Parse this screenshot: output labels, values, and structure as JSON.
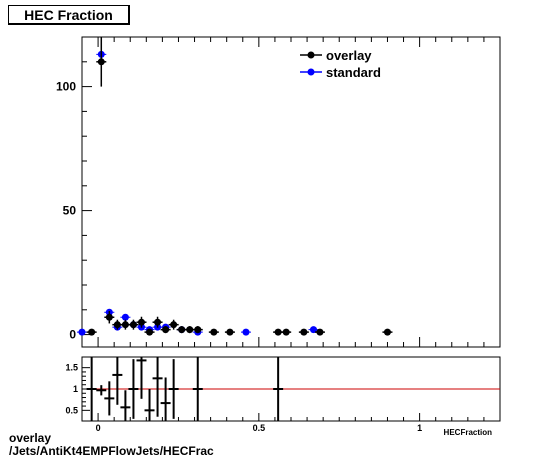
{
  "chart_data": [
    {
      "type": "scatter",
      "title": "HEC Fraction",
      "xlim": [
        -0.05,
        1.25
      ],
      "ylim": [
        -5,
        120
      ],
      "yticks": [
        0,
        50,
        100
      ],
      "grid": false,
      "legend_position": "top-right",
      "series": [
        {
          "name": "overlay",
          "color": "#000000",
          "points": [
            {
              "x": -0.02,
              "y": 1,
              "err": 0.8
            },
            {
              "x": 0.01,
              "y": 110,
              "err": 10
            },
            {
              "x": 0.035,
              "y": 7,
              "err": 2.5
            },
            {
              "x": 0.06,
              "y": 4,
              "err": 2
            },
            {
              "x": 0.085,
              "y": 4,
              "err": 2
            },
            {
              "x": 0.11,
              "y": 4,
              "err": 2
            },
            {
              "x": 0.135,
              "y": 5,
              "err": 2.2
            },
            {
              "x": 0.16,
              "y": 1,
              "err": 1
            },
            {
              "x": 0.185,
              "y": 5,
              "err": 2.2
            },
            {
              "x": 0.21,
              "y": 2,
              "err": 1.4
            },
            {
              "x": 0.235,
              "y": 4,
              "err": 2
            },
            {
              "x": 0.26,
              "y": 2,
              "err": 1.4
            },
            {
              "x": 0.285,
              "y": 2,
              "err": 1.4
            },
            {
              "x": 0.31,
              "y": 2,
              "err": 1.4
            },
            {
              "x": 0.36,
              "y": 1,
              "err": 1
            },
            {
              "x": 0.41,
              "y": 1,
              "err": 1
            },
            {
              "x": 0.56,
              "y": 1,
              "err": 1
            },
            {
              "x": 0.585,
              "y": 1,
              "err": 1
            },
            {
              "x": 0.64,
              "y": 1,
              "err": 1
            },
            {
              "x": 0.69,
              "y": 1,
              "err": 1
            },
            {
              "x": 0.9,
              "y": 1,
              "err": 1
            }
          ]
        },
        {
          "name": "standard",
          "color": "#0000ff",
          "points": [
            {
              "x": -0.05,
              "y": 1
            },
            {
              "x": 0.01,
              "y": 113
            },
            {
              "x": 0.035,
              "y": 9
            },
            {
              "x": 0.06,
              "y": 3
            },
            {
              "x": 0.085,
              "y": 7
            },
            {
              "x": 0.11,
              "y": 4
            },
            {
              "x": 0.135,
              "y": 3
            },
            {
              "x": 0.16,
              "y": 2
            },
            {
              "x": 0.185,
              "y": 3
            },
            {
              "x": 0.21,
              "y": 3
            },
            {
              "x": 0.26,
              "y": 2
            },
            {
              "x": 0.31,
              "y": 1
            },
            {
              "x": 0.46,
              "y": 1
            },
            {
              "x": 0.67,
              "y": 2
            }
          ]
        }
      ]
    },
    {
      "type": "scatter",
      "title": "",
      "xlim": [
        -0.05,
        1.25
      ],
      "ylim": [
        0.25,
        1.75
      ],
      "xticks": [
        0,
        0.5,
        1
      ],
      "yticks": [
        0.5,
        1,
        1.5
      ],
      "xlabel": "HECFraction",
      "reference_line": {
        "y": 1,
        "color": "#cc0000"
      },
      "points": [
        {
          "x": -0.02,
          "y": 1.0,
          "err": 0.8
        },
        {
          "x": 0.01,
          "y": 0.97,
          "err": 0.12
        },
        {
          "x": 0.035,
          "y": 0.78,
          "err": 0.4
        },
        {
          "x": 0.06,
          "y": 1.33,
          "err": 0.7
        },
        {
          "x": 0.085,
          "y": 0.57,
          "err": 0.4
        },
        {
          "x": 0.11,
          "y": 1.0,
          "err": 0.7
        },
        {
          "x": 0.135,
          "y": 1.67,
          "err": 0.9
        },
        {
          "x": 0.16,
          "y": 0.5,
          "err": 0.5
        },
        {
          "x": 0.185,
          "y": 1.25,
          "err": 0.9
        },
        {
          "x": 0.21,
          "y": 0.67,
          "err": 0.6
        },
        {
          "x": 0.235,
          "y": 1.0,
          "err": 0.7
        },
        {
          "x": 0.31,
          "y": 1.0,
          "err": 0.8
        },
        {
          "x": 0.56,
          "y": 1.0,
          "err": 0.8
        }
      ]
    }
  ],
  "caption": {
    "line1": "overlay",
    "line2": "/Jets/AntiKt4EMPFlowJets/HECFrac"
  }
}
